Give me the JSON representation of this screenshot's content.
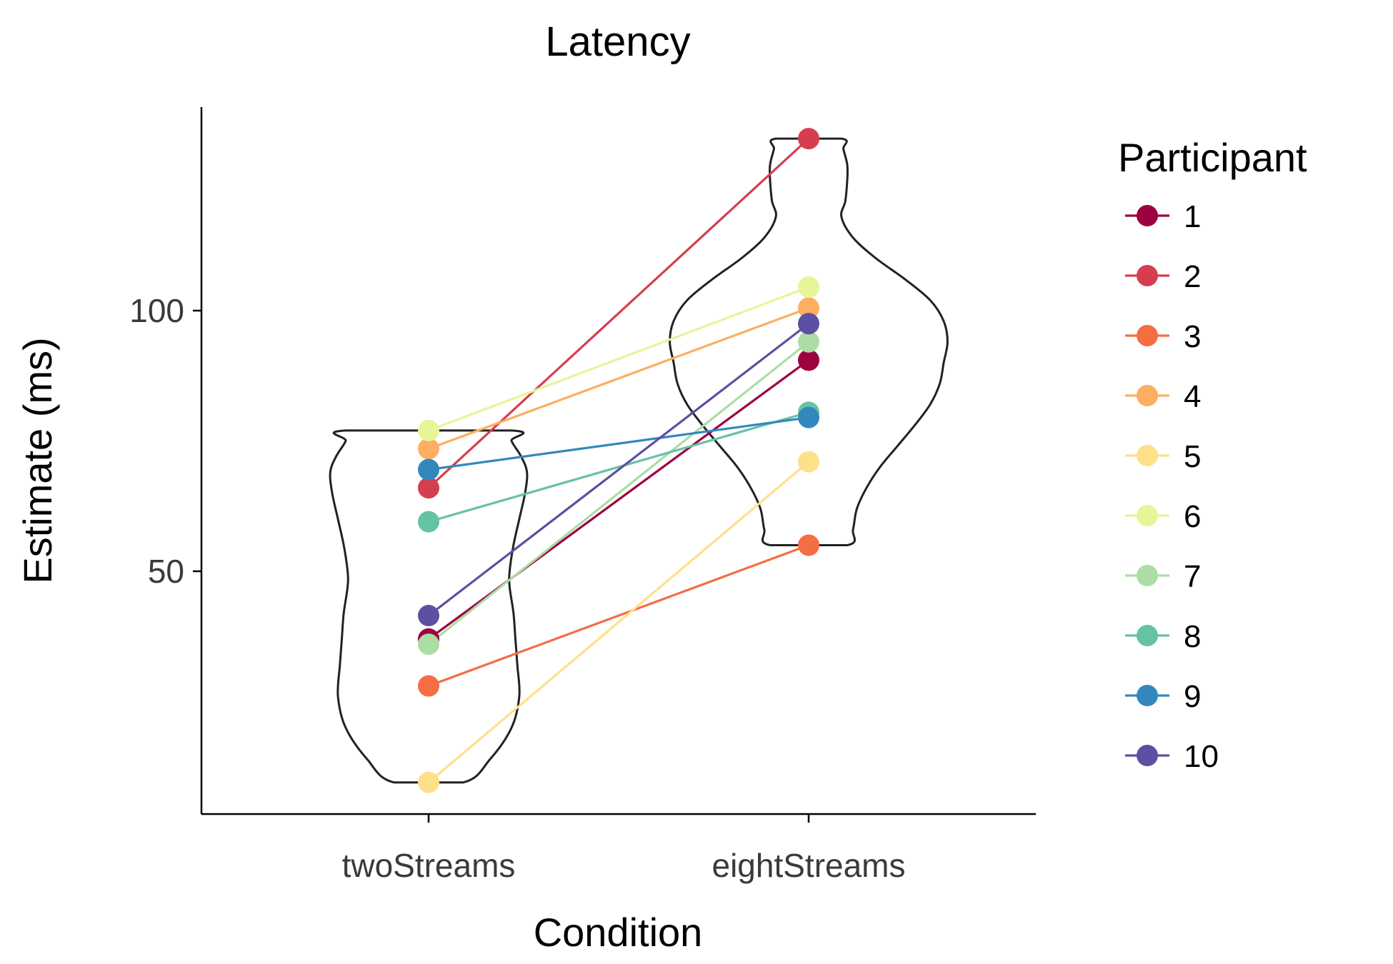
{
  "chart_data": {
    "type": "scatter",
    "title": "Latency",
    "xlabel": "Condition",
    "ylabel": "Estimate (ms)",
    "categories": [
      "twoStreams",
      "eightStreams"
    ],
    "yticks": [
      50,
      100
    ],
    "ylim": [
      5,
      140
    ],
    "grid": false,
    "legend": {
      "title": "Participant",
      "position": "right"
    },
    "series": [
      {
        "name": "1",
        "color": "#9e0142",
        "values": [
          37,
          90.5
        ]
      },
      {
        "name": "2",
        "color": "#d53e4f",
        "values": [
          66,
          133
        ]
      },
      {
        "name": "3",
        "color": "#f46d43",
        "values": [
          28,
          55
        ]
      },
      {
        "name": "4",
        "color": "#fdae61",
        "values": [
          73.5,
          100.5
        ]
      },
      {
        "name": "5",
        "color": "#fee08b",
        "values": [
          9.5,
          71
        ]
      },
      {
        "name": "6",
        "color": "#e6f598",
        "values": [
          77,
          104.5
        ]
      },
      {
        "name": "7",
        "color": "#abdda4",
        "values": [
          36,
          94
        ]
      },
      {
        "name": "8",
        "color": "#66c2a5",
        "values": [
          59.5,
          80.5
        ]
      },
      {
        "name": "9",
        "color": "#3288bd",
        "values": [
          69.5,
          79.5
        ]
      },
      {
        "name": "10",
        "color": "#5e4fa2",
        "values": [
          41.5,
          97.5
        ]
      }
    ],
    "violins": [
      {
        "category": "twoStreams",
        "profile": [
          [
            9.5,
            1.8
          ],
          [
            14,
            3.2
          ],
          [
            20,
            4.3
          ],
          [
            26,
            4.7
          ],
          [
            32,
            4.6
          ],
          [
            37,
            4.5
          ],
          [
            42,
            4.4
          ],
          [
            47,
            4.2
          ],
          [
            50,
            4.2
          ],
          [
            55,
            4.4
          ],
          [
            60,
            4.7
          ],
          [
            65,
            5.0
          ],
          [
            69,
            5.1
          ],
          [
            72,
            4.8
          ],
          [
            75,
            4.3
          ],
          [
            77,
            4.3
          ]
        ]
      },
      {
        "category": "eightStreams",
        "profile": [
          [
            55,
            2.0
          ],
          [
            58,
            2.3
          ],
          [
            62,
            2.5
          ],
          [
            66,
            3.0
          ],
          [
            70,
            3.7
          ],
          [
            74,
            4.6
          ],
          [
            78,
            5.5
          ],
          [
            82,
            6.3
          ],
          [
            86,
            6.8
          ],
          [
            90,
            7.0
          ],
          [
            94,
            7.2
          ],
          [
            98,
            7.0
          ],
          [
            102,
            6.3
          ],
          [
            106,
            5.0
          ],
          [
            110,
            3.5
          ],
          [
            114,
            2.3
          ],
          [
            118,
            1.7
          ],
          [
            121,
            1.9
          ],
          [
            125,
            2.0
          ],
          [
            128,
            2.0
          ],
          [
            131,
            1.8
          ],
          [
            133,
            1.7
          ]
        ]
      }
    ]
  }
}
